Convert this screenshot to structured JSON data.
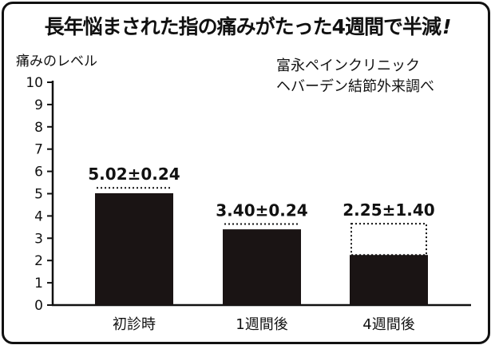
{
  "title": "長年悩まされた指の痛みがたった4週間で半減",
  "title_mark": "!",
  "source_lines": [
    "富永ペインクリニック",
    "ヘバーデン結節外来調べ"
  ],
  "colors": {
    "bar": "#1a1414",
    "text": "#111111",
    "frame": "#111111"
  },
  "chart_data": {
    "type": "bar",
    "title": "長年悩まされた指の痛みがたった4週間で半減",
    "ylabel": "痛みのレベル",
    "xlabel": "",
    "ylim": [
      0,
      10
    ],
    "yticks": [
      0,
      1,
      2,
      3,
      4,
      5,
      6,
      7,
      8,
      9,
      10
    ],
    "categories": [
      "初診時",
      "1週間後",
      "4週間後"
    ],
    "values": [
      5.02,
      3.4,
      2.25
    ],
    "errors": [
      0.24,
      0.24,
      1.4
    ],
    "data_labels": [
      "5.02±0.24",
      "3.40±0.24",
      "2.25±1.40"
    ]
  }
}
